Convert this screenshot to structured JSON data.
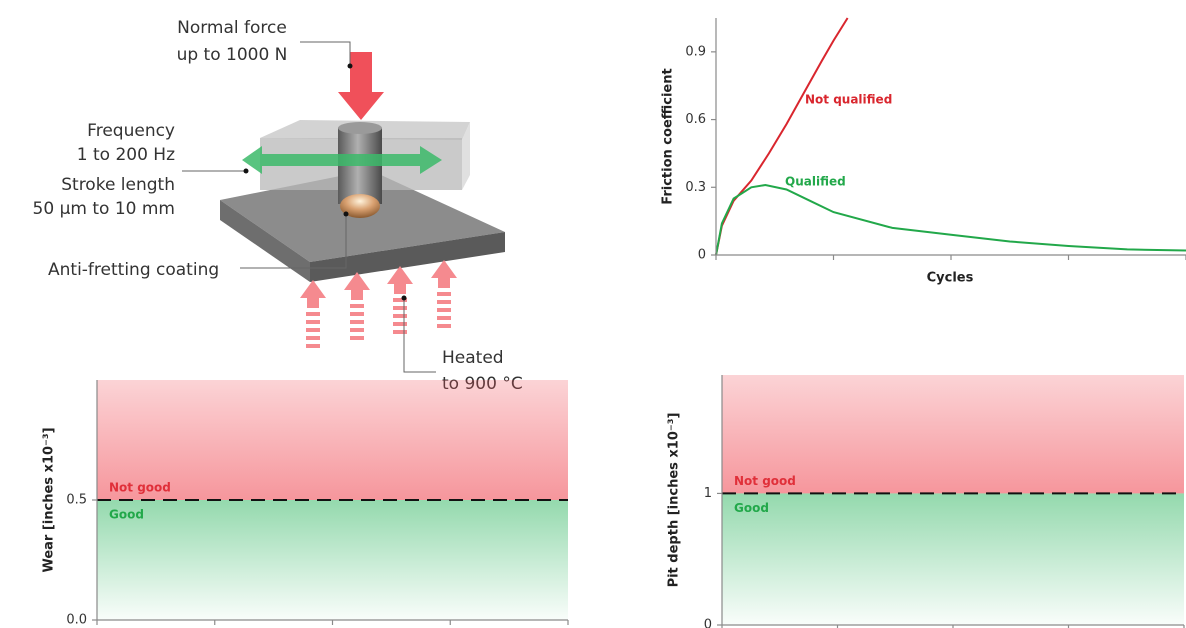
{
  "diagram": {
    "normal_force": [
      "Normal force",
      "up to 1000 N"
    ],
    "frequency": [
      "Frequency",
      "1 to 200 Hz"
    ],
    "stroke": [
      "Stroke length",
      "50 µm to 10 mm"
    ],
    "coating": "Anti-fretting coating",
    "heated": [
      "Heated",
      "to 900 °C"
    ]
  },
  "chart_data": [
    {
      "type": "line",
      "xlabel": "Cycles",
      "ylabel": "Friction coefficient",
      "xlim": [
        0,
        4
      ],
      "xticks": [
        0,
        1,
        2,
        3,
        4
      ],
      "ylim": [
        0,
        1.05
      ],
      "yticks": [
        0,
        0.3,
        0.6,
        0.9
      ],
      "series": [
        {
          "name": "Not qualified",
          "color": "#d9262e",
          "x": [
            0,
            0.05,
            0.15,
            0.3,
            0.45,
            0.6,
            0.75,
            0.9,
            1.0,
            1.12
          ],
          "values": [
            0,
            0.13,
            0.24,
            0.33,
            0.45,
            0.58,
            0.72,
            0.86,
            0.95,
            1.05
          ]
        },
        {
          "name": "Qualified",
          "color": "#22a84a",
          "x": [
            0,
            0.05,
            0.15,
            0.3,
            0.42,
            0.6,
            0.8,
            1.0,
            1.5,
            2.0,
            2.5,
            3.0,
            3.5,
            4.0
          ],
          "values": [
            0,
            0.14,
            0.25,
            0.3,
            0.31,
            0.29,
            0.24,
            0.19,
            0.12,
            0.09,
            0.06,
            0.04,
            0.025,
            0.02
          ]
        }
      ]
    },
    {
      "type": "band",
      "ylabel": "Wear [inches x10⁻³]",
      "xlim": [
        0,
        4
      ],
      "xticks": [
        0,
        1,
        2,
        3,
        4
      ],
      "ylim": [
        0,
        1.0
      ],
      "yticks": [
        {
          "value": 0,
          "label": "0.0"
        },
        0.5
      ],
      "threshold": 0.5,
      "above_label": "Not good",
      "below_label": "Good",
      "above_color": "#f0505a",
      "below_color": "#3cba6a"
    },
    {
      "type": "band",
      "ylabel": "Pit depth [inches x10⁻³]",
      "xlim": [
        0,
        4
      ],
      "xticks": [
        0,
        1,
        2,
        3,
        4
      ],
      "ylim": [
        0,
        1.9
      ],
      "yticks": [
        0,
        1
      ],
      "threshold": 1,
      "above_label": "Not good",
      "below_label": "Good",
      "above_color": "#f0505a",
      "below_color": "#3cba6a"
    }
  ]
}
